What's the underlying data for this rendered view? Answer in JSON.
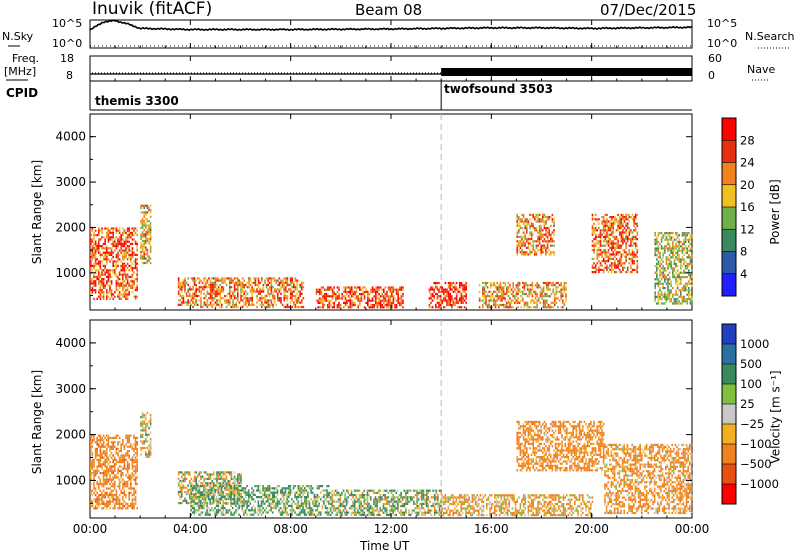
{
  "header": {
    "station": "Inuvik (fitACF)",
    "beam": "Beam 08",
    "date": "07/Dec/2015"
  },
  "nsky_panel": {
    "left_label": "N.Sky",
    "right_label": "N.Search",
    "left_ticks": [
      "10^5",
      "10^0"
    ],
    "right_ticks": [
      "10^5",
      "10^0"
    ]
  },
  "freq_panel": {
    "left_label_1": "Freq.",
    "left_label_2": "[MHz]",
    "left_ticks": [
      "18",
      "8"
    ],
    "right_label": "Nave",
    "right_ticks": [
      "60",
      "0"
    ]
  },
  "cpid_panel": {
    "label": "CPID",
    "programs": [
      {
        "name": "themis 3300",
        "start_hour": 0
      },
      {
        "name": "twofsound 3503",
        "start_hour": 14
      }
    ]
  },
  "power_panel": {
    "ylabel": "Slant Range [km]",
    "yticks": [
      "1000",
      "2000",
      "3000",
      "4000"
    ],
    "colorbar_label": "Power [dB]",
    "colorbar_ticks": [
      "4",
      "8",
      "12",
      "16",
      "20",
      "24",
      "28"
    ],
    "colorbar_colors": [
      "#1f1fff",
      "#2a5aa8",
      "#3a8a60",
      "#6fb04a",
      "#f0c020",
      "#f08020",
      "#e83010",
      "#ff0000"
    ]
  },
  "velocity_panel": {
    "ylabel": "Slant Range [km]",
    "yticks": [
      "1000",
      "2000",
      "3000",
      "4000"
    ],
    "colorbar_label": "Velocity [m s⁻¹]",
    "colorbar_ticks": [
      "1000",
      "500",
      "100",
      "25",
      "−25",
      "−100",
      "−500",
      "−1000"
    ],
    "colorbar_colors": [
      "#2040c0",
      "#2a70a0",
      "#3a8a60",
      "#80c040",
      "#c8c8c8",
      "#f0b020",
      "#f08020",
      "#e85010",
      "#ff0000"
    ]
  },
  "xaxis": {
    "label": "Time UT",
    "ticks": [
      "00:00",
      "04:00",
      "08:00",
      "12:00",
      "16:00",
      "20:00",
      "00:00"
    ]
  },
  "chart_data": [
    {
      "type": "line",
      "title": "N.Sky / N.Search",
      "x_range_hours": [
        0,
        24
      ],
      "ylim_log10": [
        0,
        5
      ],
      "series": [
        {
          "name": "N.Sky",
          "x": [
            0,
            0.5,
            1,
            1.5,
            2,
            4,
            8,
            12,
            16,
            18,
            20,
            22,
            24
          ],
          "y_log10": [
            3.2,
            4.6,
            4.9,
            4.3,
            3.5,
            3.3,
            3.3,
            3.4,
            3.6,
            3.6,
            3.5,
            3.6,
            3.7
          ]
        }
      ]
    },
    {
      "type": "line",
      "title": "Freq. / Nave",
      "x_range_hours": [
        0,
        24
      ],
      "series": [
        {
          "name": "Freq. [MHz]",
          "x": [
            0,
            14,
            14,
            24
          ],
          "y": [
            10.8,
            10.8,
            10.8,
            10.8
          ]
        },
        {
          "name": "Nave",
          "x": [
            0,
            14,
            14,
            24
          ],
          "y": [
            22,
            22,
            30,
            30
          ]
        }
      ]
    },
    {
      "type": "heatmap",
      "title": "Power [dB]",
      "x_range_hours": [
        0,
        24
      ],
      "y_range_km": [
        180,
        4500
      ],
      "patches": [
        {
          "t0": 0.0,
          "t1": 1.9,
          "r0": 400,
          "r1": 2000,
          "value_db": 24
        },
        {
          "t0": 2.0,
          "t1": 2.4,
          "r0": 1200,
          "r1": 2500,
          "value_db": 18
        },
        {
          "t0": 3.5,
          "t1": 8.5,
          "r0": 250,
          "r1": 900,
          "value_db": 22
        },
        {
          "t0": 9.0,
          "t1": 12.5,
          "r0": 250,
          "r1": 700,
          "value_db": 26
        },
        {
          "t0": 13.5,
          "t1": 15.0,
          "r0": 250,
          "r1": 800,
          "value_db": 27
        },
        {
          "t0": 15.5,
          "t1": 19.0,
          "r0": 250,
          "r1": 800,
          "value_db": 20
        },
        {
          "t0": 17.0,
          "t1": 18.5,
          "r0": 1400,
          "r1": 2300,
          "value_db": 22
        },
        {
          "t0": 20.0,
          "t1": 21.8,
          "r0": 1000,
          "r1": 2300,
          "value_db": 23
        },
        {
          "t0": 22.5,
          "t1": 24.0,
          "r0": 300,
          "r1": 1900,
          "value_db": 16
        }
      ]
    },
    {
      "type": "heatmap",
      "title": "Velocity [m s⁻¹]",
      "x_range_hours": [
        0,
        24
      ],
      "y_range_km": [
        180,
        4500
      ],
      "patches": [
        {
          "t0": 0.0,
          "t1": 1.9,
          "r0": 400,
          "r1": 2000,
          "value_ms": -300
        },
        {
          "t0": 2.0,
          "t1": 2.4,
          "r0": 1500,
          "r1": 2500,
          "value_ms": 0
        },
        {
          "t0": 3.5,
          "t1": 6.0,
          "r0": 500,
          "r1": 1200,
          "value_ms": 0
        },
        {
          "t0": 4.0,
          "t1": 9.5,
          "r0": 250,
          "r1": 900,
          "value_ms": 150
        },
        {
          "t0": 9.5,
          "t1": 14.0,
          "r0": 250,
          "r1": 800,
          "value_ms": 80
        },
        {
          "t0": 14.0,
          "t1": 20.0,
          "r0": 250,
          "r1": 700,
          "value_ms": -150
        },
        {
          "t0": 17.0,
          "t1": 20.5,
          "r0": 1200,
          "r1": 2300,
          "value_ms": -250
        },
        {
          "t0": 20.5,
          "t1": 24.0,
          "r0": 300,
          "r1": 1800,
          "value_ms": -200
        }
      ]
    }
  ]
}
